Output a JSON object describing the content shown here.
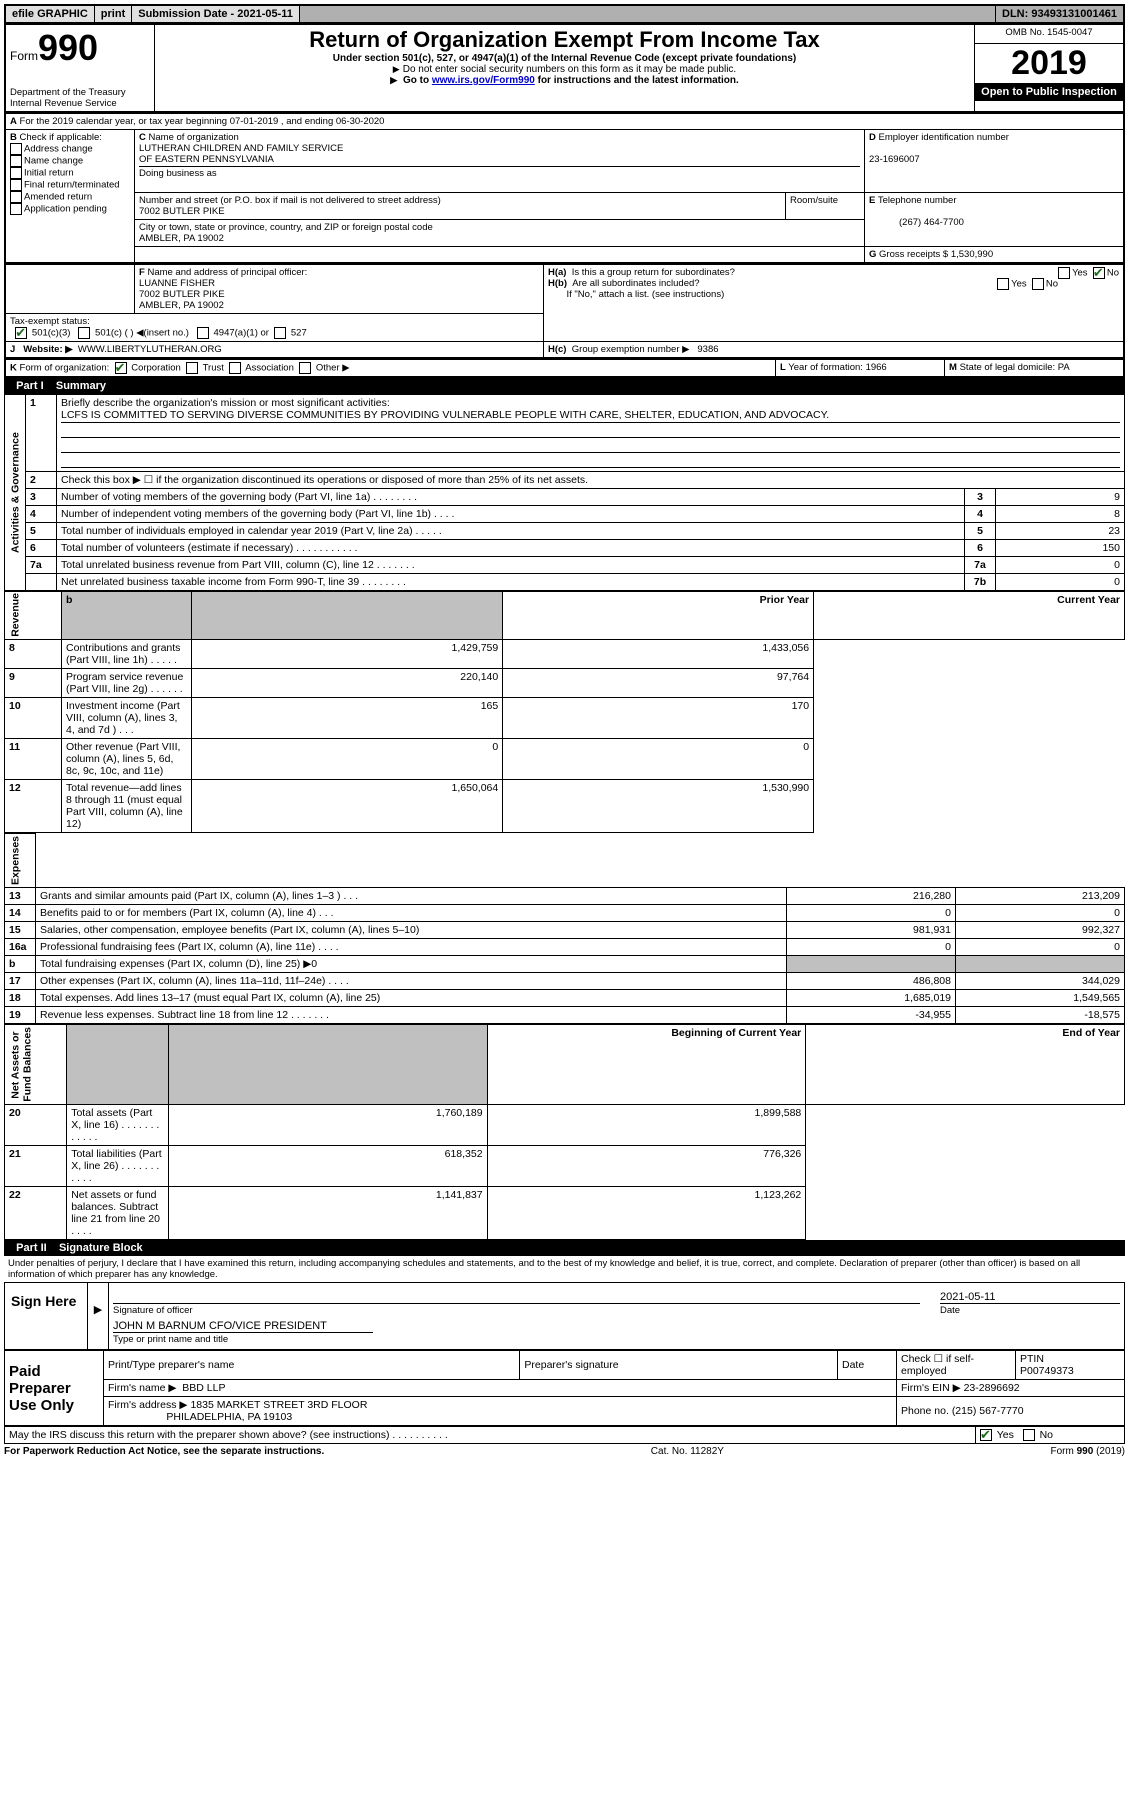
{
  "topbar": {
    "efile_label": "efile GRAPHIC",
    "print_btn": "print",
    "sub_date_label": "Submission Date - 2021-05-11",
    "dln": "DLN: 93493131001461"
  },
  "header": {
    "form_word": "Form",
    "form_no": "990",
    "dept": "Department of the Treasury\nInternal Revenue Service",
    "title": "Return of Organization Exempt From Income Tax",
    "sub1": "Under section 501(c), 527, or 4947(a)(1) of the Internal Revenue Code (except private foundations)",
    "sub2": "Do not enter social security numbers on this form as it may be made public.",
    "sub3_pre": "Go to ",
    "sub3_link": "www.irs.gov/Form990",
    "sub3_post": " for instructions and the latest information.",
    "omb": "OMB No. 1545-0047",
    "year": "2019",
    "open": "Open to Public Inspection"
  },
  "periodA": "For the 2019 calendar year, or tax year beginning 07-01-2019   , and ending 06-30-2020",
  "boxB": {
    "label": "Check if applicable:",
    "opts": [
      "Address change",
      "Name change",
      "Initial return",
      "Final return/terminated",
      "Amended return",
      "Application pending"
    ]
  },
  "boxC": {
    "name_label": "Name of organization",
    "name": "LUTHERAN CHILDREN AND FAMILY SERVICE\nOF EASTERN PENNSYLVANIA",
    "dba_label": "Doing business as",
    "addr_label": "Number and street (or P.O. box if mail is not delivered to street address)",
    "room_label": "Room/suite",
    "addr": "7002 BUTLER PIKE",
    "city_label": "City or town, state or province, country, and ZIP or foreign postal code",
    "city": "AMBLER, PA  19002"
  },
  "boxD": {
    "label": "Employer identification number",
    "val": "23-1696007"
  },
  "boxE": {
    "label": "Telephone number",
    "val": "(267) 464-7700"
  },
  "boxG": {
    "label": "Gross receipts $",
    "val": "1,530,990"
  },
  "boxF": {
    "label": "Name and address of principal officer:",
    "name": "LUANNE FISHER",
    "addr1": "7002 BUTLER PIKE",
    "addr2": "AMBLER, PA  19002"
  },
  "boxH": {
    "a_label": "Is this a group return for subordinates?",
    "a_no": "No",
    "a_yes": "Yes",
    "b_label": "Are all subordinates included?",
    "b_note": "If \"No,\" attach a list. (see instructions)",
    "c_label": "Group exemption number",
    "c_val": "9386"
  },
  "taxexempt": {
    "label": "Tax-exempt status:",
    "o1": "501(c)(3)",
    "o2": "501(c) (   )",
    "o2b": "(insert no.)",
    "o3": "4947(a)(1) or",
    "o4": "527"
  },
  "boxJ": {
    "label": "Website:",
    "val": "WWW.LIBERTYLUTHERAN.ORG"
  },
  "boxK": {
    "label": "Form of organization:",
    "opts": [
      "Corporation",
      "Trust",
      "Association",
      "Other"
    ]
  },
  "boxL": {
    "label": "Year of formation:",
    "val": "1966"
  },
  "boxM": {
    "label": "State of legal domicile:",
    "val": "PA"
  },
  "part1": {
    "bar": "Part I",
    "title": "Summary"
  },
  "p1": {
    "l1_label": "Briefly describe the organization's mission or most significant activities:",
    "l1_text": "LCFS IS COMMITTED TO SERVING DIVERSE COMMUNITIES BY PROVIDING VULNERABLE PEOPLE WITH CARE, SHELTER, EDUCATION, AND ADVOCACY.",
    "l2": "Check this box ▶ ☐ if the organization discontinued its operations or disposed of more than 25% of its net assets.",
    "rows_gov": [
      {
        "n": "3",
        "t": "Number of voting members of the governing body (Part VI, line 1a)  .   .   .   .   .   .   .   .",
        "box": "3",
        "v": "9"
      },
      {
        "n": "4",
        "t": "Number of independent voting members of the governing body (Part VI, line 1b)   .   .   .   .",
        "box": "4",
        "v": "8"
      },
      {
        "n": "5",
        "t": "Total number of individuals employed in calendar year 2019 (Part V, line 2a)  .   .   .   .   .",
        "box": "5",
        "v": "23"
      },
      {
        "n": "6",
        "t": "Total number of volunteers (estimate if necessary)    .   .   .   .   .   .   .   .   .   .   .",
        "box": "6",
        "v": "150"
      },
      {
        "n": "7a",
        "t": "Total unrelated business revenue from Part VIII, column (C), line 12  .   .   .   .   .   .   .",
        "box": "7a",
        "v": "0"
      },
      {
        "n": "",
        "t": "Net unrelated business taxable income from Form 990-T, line 39   .   .   .   .   .   .   .   .",
        "box": "7b",
        "v": "0"
      }
    ],
    "col_py": "Prior Year",
    "col_cy": "Current Year",
    "rows_rev": [
      {
        "n": "8",
        "t": "Contributions and grants (Part VIII, line 1h)    .   .   .   .   .",
        "py": "1,429,759",
        "cy": "1,433,056"
      },
      {
        "n": "9",
        "t": "Program service revenue (Part VIII, line 2g)   .   .   .   .   .   .",
        "py": "220,140",
        "cy": "97,764"
      },
      {
        "n": "10",
        "t": "Investment income (Part VIII, column (A), lines 3, 4, and 7d )   .   .   .",
        "py": "165",
        "cy": "170"
      },
      {
        "n": "11",
        "t": "Other revenue (Part VIII, column (A), lines 5, 6d, 8c, 9c, 10c, and 11e)",
        "py": "0",
        "cy": "0"
      },
      {
        "n": "12",
        "t": "Total revenue—add lines 8 through 11 (must equal Part VIII, column (A), line 12)",
        "py": "1,650,064",
        "cy": "1,530,990"
      }
    ],
    "rows_exp": [
      {
        "n": "13",
        "t": "Grants and similar amounts paid (Part IX, column (A), lines 1–3 )  .   .   .",
        "py": "216,280",
        "cy": "213,209"
      },
      {
        "n": "14",
        "t": "Benefits paid to or for members (Part IX, column (A), line 4)   .   .   .",
        "py": "0",
        "cy": "0"
      },
      {
        "n": "15",
        "t": "Salaries, other compensation, employee benefits (Part IX, column (A), lines 5–10)",
        "py": "981,931",
        "cy": "992,327"
      },
      {
        "n": "16a",
        "t": "Professional fundraising fees (Part IX, column (A), line 11e)  .   .   .   .",
        "py": "0",
        "cy": "0"
      },
      {
        "n": "b",
        "t": "Total fundraising expenses (Part IX, column (D), line 25) ▶0",
        "py": "",
        "cy": "",
        "shaded": true
      },
      {
        "n": "17",
        "t": "Other expenses (Part IX, column (A), lines 11a–11d, 11f–24e)   .   .   .   .",
        "py": "486,808",
        "cy": "344,029"
      },
      {
        "n": "18",
        "t": "Total expenses. Add lines 13–17 (must equal Part IX, column (A), line 25)",
        "py": "1,685,019",
        "cy": "1,549,565"
      },
      {
        "n": "19",
        "t": "Revenue less expenses. Subtract line 18 from line 12 .   .   .   .   .   .   .",
        "py": "-34,955",
        "cy": "-18,575"
      }
    ],
    "col_by": "Beginning of Current Year",
    "col_ey": "End of Year",
    "rows_na": [
      {
        "n": "20",
        "t": "Total assets (Part X, line 16)  .   .   .   .   .   .   .   .   .   .   .   .",
        "py": "1,760,189",
        "cy": "1,899,588"
      },
      {
        "n": "21",
        "t": "Total liabilities (Part X, line 26)  .   .   .   .   .   .   .   .   .   .   .",
        "py": "618,352",
        "cy": "776,326"
      },
      {
        "n": "22",
        "t": "Net assets or fund balances. Subtract line 21 from line 20   .   .   .   .",
        "py": "1,141,837",
        "cy": "1,123,262"
      }
    ],
    "side_gov": "Activities & Governance",
    "side_rev": "Revenue",
    "side_exp": "Expenses",
    "side_na": "Net Assets or\nFund Balances"
  },
  "part2": {
    "bar": "Part II",
    "title": "Signature Block"
  },
  "p2": {
    "decl": "Under penalties of perjury, I declare that I have examined this return, including accompanying schedules and statements, and to the best of my knowledge and belief, it is true, correct, and complete. Declaration of preparer (other than officer) is based on all information of which preparer has any knowledge.",
    "sign_here": "Sign Here",
    "sig_officer": "Signature of officer",
    "date_label": "Date",
    "date_val": "2021-05-11",
    "name_title": "JOHN M BARNUM CFO/VICE PRESIDENT",
    "type_label": "Type or print name and title",
    "paid_label": "Paid Preparer Use Only",
    "h_prep_name": "Print/Type preparer's name",
    "h_prep_sig": "Preparer's signature",
    "h_date": "Date",
    "h_check": "Check ☐ if self-employed",
    "h_ptin": "PTIN",
    "ptin_val": "P00749373",
    "firm_name_label": "Firm's name   ▶",
    "firm_name": "BBD LLP",
    "firm_ein_label": "Firm's EIN ▶",
    "firm_ein": "23-2896692",
    "firm_addr_label": "Firm's address ▶",
    "firm_addr": "1835 MARKET STREET 3RD FLOOR",
    "firm_city": "PHILADELPHIA, PA  19103",
    "phone_label": "Phone no.",
    "phone_val": "(215) 567-7770",
    "discuss": "May the IRS discuss this return with the preparer shown above? (see instructions)   .   .   .   .   .   .   .   .   .   .",
    "yes": "Yes",
    "no": "No"
  },
  "footer": {
    "pra": "For Paperwork Reduction Act Notice, see the separate instructions.",
    "cat": "Cat. No. 11282Y",
    "form": "Form 990 (2019)"
  }
}
